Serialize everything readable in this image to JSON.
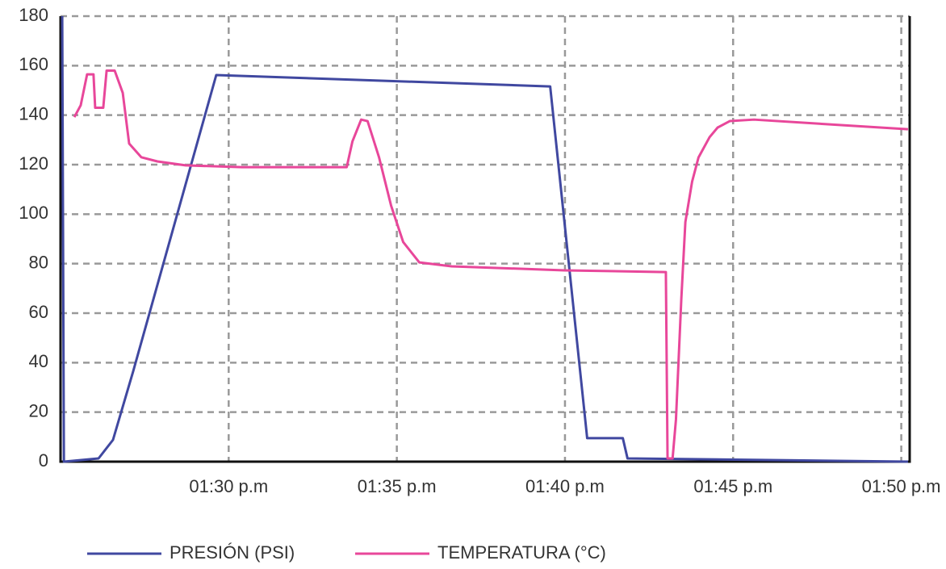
{
  "chart_data": {
    "type": "line",
    "xlim": [
      85,
      110.25
    ],
    "xticks": [
      {
        "value": 90,
        "label": "01:30 p.m"
      },
      {
        "value": 95,
        "label": "01:35 p.m"
      },
      {
        "value": 100,
        "label": "01:40 p.m"
      },
      {
        "value": 105,
        "label": "01:45 p.m"
      },
      {
        "value": 110,
        "label": "01:50 p.m"
      }
    ],
    "ylim": [
      0,
      180
    ],
    "yticks": [
      0,
      20,
      40,
      60,
      80,
      100,
      120,
      140,
      160,
      180
    ],
    "grid": true,
    "legend": "bottom",
    "series": [
      {
        "name": "PRESIÓN (PSI)",
        "color": "#4048a0",
        "x": [
          85.05,
          85.1,
          86.13,
          86.56,
          87.16,
          89.63,
          99.56,
          100.66,
          101.72,
          101.86,
          110.2
        ],
        "values": [
          180,
          0,
          1.3,
          8.8,
          36.5,
          156.2,
          151.6,
          9.5,
          9.5,
          1.3,
          0
        ]
      },
      {
        "name": "TEMPERATURA (°C)",
        "color": "#e8479a",
        "x": [
          85.41,
          85.6,
          85.79,
          85.98,
          86.03,
          86.27,
          86.37,
          86.61,
          86.85,
          87.04,
          87.4,
          87.88,
          88.72,
          90.4,
          93.51,
          93.68,
          93.94,
          94.13,
          94.47,
          94.83,
          95.19,
          95.67,
          96.63,
          99.99,
          103.0,
          103.05,
          103.2,
          103.3,
          103.46,
          103.58,
          103.78,
          103.97,
          104.3,
          104.54,
          104.9,
          105.62,
          110.2
        ],
        "values": [
          139.2,
          144,
          156.5,
          156.5,
          143,
          143,
          158,
          158,
          149,
          128.5,
          123,
          121.3,
          119.7,
          119,
          119,
          129.4,
          138.2,
          137.6,
          123,
          103.4,
          88.7,
          80.5,
          78.9,
          77.3,
          76.6,
          1.3,
          1.3,
          17,
          65.9,
          96.8,
          113.1,
          122.9,
          131.1,
          135,
          137.6,
          138.2,
          134.3
        ]
      }
    ]
  }
}
